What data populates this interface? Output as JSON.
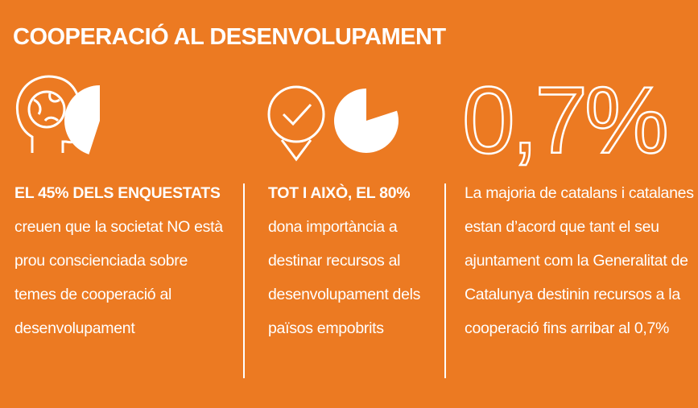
{
  "title": "COOPERACIÓ AL DESENVOLUPAMENT",
  "columns": [
    {
      "percent": 45,
      "bold": "EL 45% DELS ENQUESTATS",
      "text": "creuen que la societat NO està prou conscienciada sobre temes de cooperació al desenvolupament"
    },
    {
      "percent": 80,
      "bold": "TOT I AIXÒ, EL 80%",
      "text": "dona importància a destinar recursos al desenvolupament dels països empobrits"
    },
    {
      "big": "0,7%",
      "text": "La majoria de catalans i catalanes estan d’acord que tant el seu ajuntament com la Generalitat de Catalunya destinin recursos a la cooperació fins arribar al 0,7%"
    }
  ]
}
